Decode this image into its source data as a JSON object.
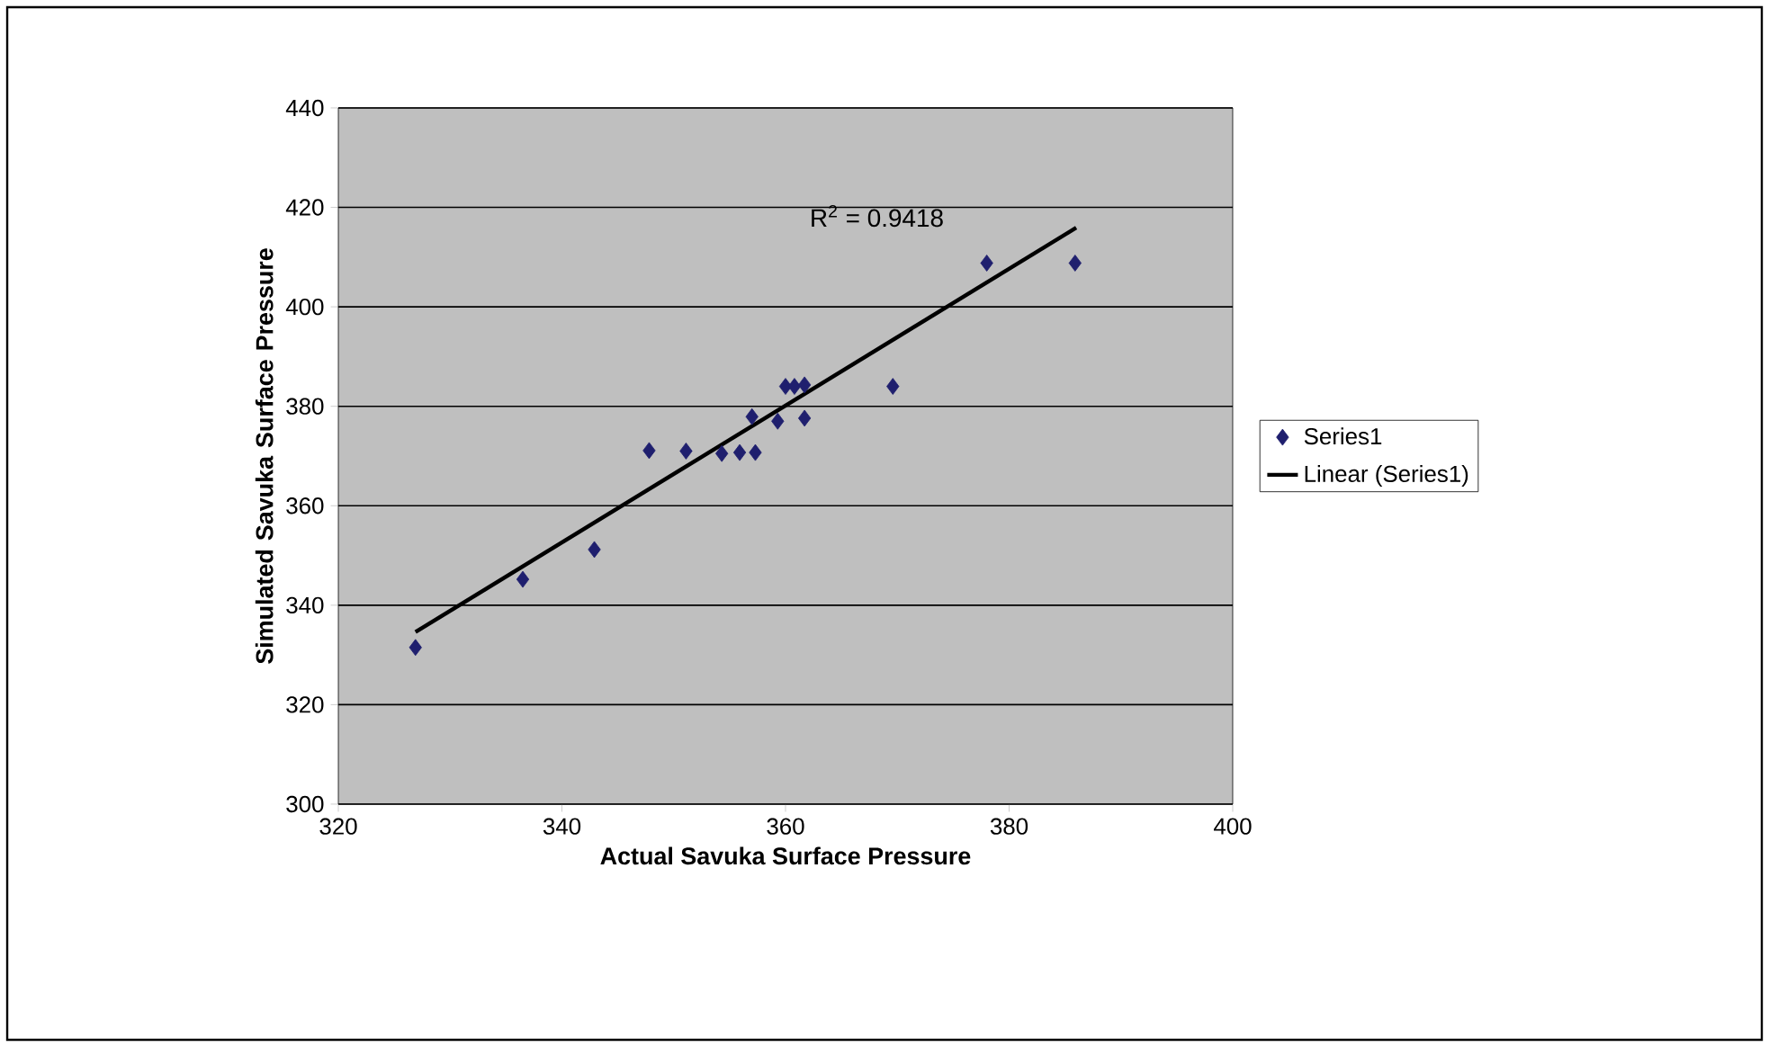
{
  "chart_data": {
    "type": "scatter",
    "xlabel": "Actual Savuka Surface Pressure",
    "ylabel": "Simulated Savuka Surface Pressure",
    "xlim": [
      320,
      400
    ],
    "xticks": [
      320,
      340,
      360,
      380,
      400
    ],
    "ylim": [
      300,
      440
    ],
    "yticks": [
      300,
      320,
      340,
      360,
      380,
      400,
      420,
      440
    ],
    "grid": "y",
    "legend": "right",
    "annotations": [
      "R$^{2}$ = 0.9418"
    ],
    "series": [
      {
        "name": "Series1",
        "marker": "diamond",
        "color": "#1f1f6e",
        "x": [
          326.9,
          336.5,
          342.9,
          347.8,
          351.1,
          354.3,
          355.9,
          357.3,
          357.0,
          359.3,
          361.7,
          360.0,
          360.8,
          361.7,
          369.6,
          378.0,
          385.9
        ],
        "values": [
          331.5,
          345.2,
          351.2,
          371.1,
          371.0,
          370.5,
          370.7,
          370.7,
          377.9,
          377.0,
          377.6,
          384.0,
          384.0,
          384.3,
          384.0,
          408.8,
          408.8
        ]
      },
      {
        "name": "Linear (Series1)",
        "type": "line",
        "color": "#000000",
        "x": [
          326.9,
          386.0
        ],
        "values": [
          334.6,
          415.9
        ]
      }
    ]
  }
}
